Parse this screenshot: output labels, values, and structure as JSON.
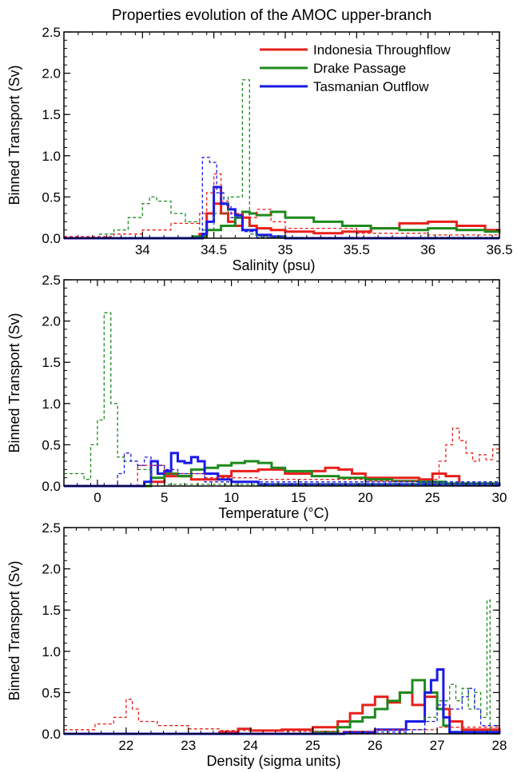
{
  "figure": {
    "title": "Properties evolution of the AMOC upper-branch"
  },
  "colors": {
    "indonesia": "#e8201c",
    "drake": "#1e8a1e",
    "tasmanian": "#1a1ae6",
    "axis": "#000000"
  },
  "chart_data": [
    {
      "type": "line",
      "style": "step histogram; solid = one state, dashed = another",
      "xlabel": "Salinity (psu)",
      "ylabel": "Binned Transport (Sv)",
      "xlim": [
        33.45,
        36.5
      ],
      "ylim": [
        0,
        2.5
      ],
      "xticks": [
        "34",
        "34.5",
        "35",
        "35.5",
        "36",
        "36.5"
      ],
      "xtick_values": [
        34,
        34.5,
        35,
        35.5,
        36,
        36.5
      ],
      "yticks": [
        "0.0",
        "0.5",
        "1.0",
        "1.5",
        "2.0",
        "2.5"
      ],
      "ytick_values": [
        0,
        0.5,
        1.0,
        1.5,
        2.0,
        2.5
      ],
      "legend": {
        "position": "top-right",
        "entries": [
          "Indonesia Throughflow",
          "Drake Passage",
          "Tasmanian Outflow"
        ]
      },
      "series": [
        {
          "name": "Indonesia Throughflow",
          "color_key": "indonesia",
          "dashed": false,
          "x": [
            33.45,
            34.4,
            34.45,
            34.5,
            34.55,
            34.6,
            34.65,
            34.7,
            34.75,
            34.8,
            34.9,
            35.0,
            35.2,
            35.4,
            35.6,
            35.8,
            36.0,
            36.2,
            36.4,
            36.5
          ],
          "y": [
            0.0,
            0.05,
            0.3,
            0.42,
            0.3,
            0.2,
            0.15,
            0.25,
            0.15,
            0.12,
            0.1,
            0.08,
            0.06,
            0.08,
            0.12,
            0.18,
            0.2,
            0.15,
            0.1,
            0.08
          ]
        },
        {
          "name": "Drake Passage",
          "color_key": "drake",
          "dashed": false,
          "x": [
            33.45,
            34.35,
            34.45,
            34.55,
            34.65,
            34.7,
            34.75,
            34.8,
            34.9,
            35.0,
            35.2,
            35.4,
            35.6,
            35.8,
            36.0,
            36.2,
            36.4,
            36.5
          ],
          "y": [
            0.0,
            0.02,
            0.1,
            0.15,
            0.25,
            0.32,
            0.3,
            0.28,
            0.32,
            0.25,
            0.2,
            0.15,
            0.12,
            0.1,
            0.12,
            0.1,
            0.08,
            0.06
          ]
        },
        {
          "name": "Tasmanian Outflow",
          "color_key": "tasmanian",
          "dashed": false,
          "x": [
            33.45,
            34.42,
            34.45,
            34.5,
            34.55,
            34.6,
            34.65,
            34.7,
            34.8,
            34.9,
            35.0,
            36.5
          ],
          "y": [
            0.0,
            0.05,
            0.2,
            0.62,
            0.42,
            0.35,
            0.28,
            0.1,
            0.04,
            0.02,
            0.0,
            0.0
          ]
        },
        {
          "name": "Indonesia Throughflow",
          "color_key": "indonesia",
          "dashed": true,
          "x": [
            33.45,
            33.8,
            34.0,
            34.2,
            34.4,
            34.45,
            34.5,
            34.55,
            34.6,
            34.7,
            34.8,
            34.9,
            35.0,
            35.5,
            36.0,
            36.5
          ],
          "y": [
            0.02,
            0.05,
            0.1,
            0.18,
            0.3,
            0.55,
            0.78,
            0.45,
            0.3,
            0.25,
            0.35,
            0.2,
            0.12,
            0.06,
            0.04,
            0.03
          ]
        },
        {
          "name": "Drake Passage",
          "color_key": "drake",
          "dashed": true,
          "x": [
            33.45,
            33.7,
            33.8,
            33.9,
            34.0,
            34.05,
            34.1,
            34.2,
            34.3,
            34.4,
            34.5,
            34.6,
            34.7,
            34.75,
            34.8,
            35.0,
            36.5
          ],
          "y": [
            0.0,
            0.05,
            0.1,
            0.25,
            0.42,
            0.5,
            0.45,
            0.3,
            0.2,
            0.1,
            0.3,
            0.5,
            1.92,
            0.05,
            0.02,
            0.0,
            0.0
          ]
        },
        {
          "name": "Tasmanian Outflow",
          "color_key": "tasmanian",
          "dashed": true,
          "x": [
            33.45,
            34.4,
            34.42,
            34.47,
            34.52,
            34.57,
            34.62,
            34.7,
            34.8,
            36.5
          ],
          "y": [
            0.0,
            0.02,
            0.98,
            0.92,
            0.55,
            0.4,
            0.25,
            0.08,
            0.01,
            0.0
          ]
        }
      ]
    },
    {
      "type": "line",
      "style": "step histogram",
      "xlabel": "Temperature (°C)",
      "ylabel": "Binned Transport (Sv)",
      "xlim": [
        -2.5,
        30
      ],
      "ylim": [
        0,
        2.5
      ],
      "xticks": [
        "0",
        "5",
        "10",
        "15",
        "20",
        "25",
        "30"
      ],
      "xtick_values": [
        0,
        5,
        10,
        15,
        20,
        25,
        30
      ],
      "yticks": [
        "0.0",
        "0.5",
        "1.0",
        "1.5",
        "2.0",
        "2.5"
      ],
      "ytick_values": [
        0,
        0.5,
        1.0,
        1.5,
        2.0,
        2.5
      ],
      "series": [
        {
          "name": "Indonesia Throughflow",
          "color_key": "indonesia",
          "dashed": false,
          "x": [
            -2.5,
            4.0,
            5.0,
            7.0,
            9.0,
            10.0,
            12.0,
            14.0,
            16.0,
            17.0,
            18.0,
            19.0,
            20.0,
            22.0,
            24.0,
            25.0,
            26.0,
            27.0,
            30.0
          ],
          "y": [
            0.0,
            0.05,
            0.12,
            0.08,
            0.12,
            0.18,
            0.2,
            0.15,
            0.18,
            0.22,
            0.2,
            0.15,
            0.1,
            0.1,
            0.08,
            0.15,
            0.12,
            0.02,
            0.0
          ]
        },
        {
          "name": "Drake Passage",
          "color_key": "drake",
          "dashed": false,
          "x": [
            -2.5,
            4.0,
            5.0,
            6.0,
            7.0,
            8.0,
            9.0,
            10.0,
            11.0,
            12.0,
            13.0,
            14.0,
            16.0,
            18.0,
            20.0,
            22.0,
            24.0,
            26.0,
            30.0
          ],
          "y": [
            0.0,
            0.1,
            0.15,
            0.12,
            0.2,
            0.22,
            0.25,
            0.28,
            0.3,
            0.28,
            0.22,
            0.18,
            0.12,
            0.1,
            0.08,
            0.06,
            0.05,
            0.03,
            0.0
          ]
        },
        {
          "name": "Tasmanian Outflow",
          "color_key": "tasmanian",
          "dashed": false,
          "x": [
            -2.5,
            3.5,
            4.0,
            4.5,
            5.0,
            5.5,
            6.0,
            6.5,
            7.0,
            7.5,
            8.0,
            9.0,
            10.0,
            12.0,
            30.0
          ],
          "y": [
            0.0,
            0.05,
            0.3,
            0.15,
            0.18,
            0.4,
            0.3,
            0.28,
            0.35,
            0.3,
            0.15,
            0.08,
            0.05,
            0.02,
            0.0
          ]
        },
        {
          "name": "Indonesia Throughflow",
          "color_key": "indonesia",
          "dashed": true,
          "x": [
            -2.5,
            3.0,
            5.0,
            8.0,
            12.0,
            16.0,
            20.0,
            24.0,
            25.5,
            26.0,
            26.5,
            27.0,
            27.5,
            28.0,
            28.5,
            29.0,
            29.5,
            30.0
          ],
          "y": [
            0.0,
            0.25,
            0.15,
            0.1,
            0.08,
            0.08,
            0.06,
            0.08,
            0.3,
            0.5,
            0.7,
            0.55,
            0.4,
            0.3,
            0.38,
            0.32,
            0.45,
            0.4
          ]
        },
        {
          "name": "Drake Passage",
          "color_key": "drake",
          "dashed": true,
          "x": [
            -2.5,
            -1.0,
            -0.5,
            0.0,
            0.5,
            1.0,
            1.5,
            2.0,
            3.0,
            4.0,
            5.0,
            30.0
          ],
          "y": [
            0.15,
            0.08,
            0.5,
            0.8,
            2.1,
            1.0,
            0.35,
            0.3,
            0.2,
            0.1,
            0.02,
            0.0
          ]
        },
        {
          "name": "Tasmanian Outflow",
          "color_key": "tasmanian",
          "dashed": true,
          "x": [
            -2.5,
            1.5,
            2.0,
            2.5,
            3.0,
            3.5,
            4.0,
            5.0,
            6.0,
            8.0,
            30.0
          ],
          "y": [
            0.0,
            0.15,
            0.4,
            0.3,
            0.25,
            0.35,
            0.25,
            0.2,
            0.15,
            0.05,
            0.0
          ]
        }
      ]
    },
    {
      "type": "line",
      "style": "step histogram",
      "xlabel": "Density (sigma units)",
      "ylabel": "Binned Transport (Sv)",
      "xlim": [
        21.0,
        28.0
      ],
      "ylim": [
        0,
        2.5
      ],
      "xticks": [
        "22",
        "23",
        "24",
        "25",
        "26",
        "27",
        "28"
      ],
      "xtick_values": [
        22,
        23,
        24,
        25,
        26,
        27,
        28
      ],
      "yticks": [
        "0.0",
        "0.5",
        "1.0",
        "1.5",
        "2.0",
        "2.5"
      ],
      "ytick_values": [
        0,
        0.5,
        1.0,
        1.5,
        2.0,
        2.5
      ],
      "series": [
        {
          "name": "Indonesia Throughflow",
          "color_key": "indonesia",
          "dashed": false,
          "x": [
            21.0,
            23.5,
            23.8,
            24.0,
            24.5,
            25.0,
            25.4,
            25.6,
            25.8,
            26.0,
            26.2,
            26.4,
            26.6,
            26.8,
            27.0,
            27.2,
            27.4,
            28.0
          ],
          "y": [
            0.0,
            0.02,
            0.06,
            0.04,
            0.05,
            0.08,
            0.15,
            0.25,
            0.35,
            0.45,
            0.38,
            0.5,
            0.35,
            0.45,
            0.3,
            0.15,
            0.05,
            0.0
          ]
        },
        {
          "name": "Drake Passage",
          "color_key": "drake",
          "dashed": false,
          "x": [
            21.0,
            25.0,
            25.4,
            25.6,
            25.8,
            26.0,
            26.2,
            26.4,
            26.6,
            26.8,
            27.0,
            27.1,
            27.2,
            28.0
          ],
          "y": [
            0.0,
            0.02,
            0.08,
            0.15,
            0.2,
            0.3,
            0.4,
            0.5,
            0.65,
            0.5,
            0.3,
            0.1,
            0.02,
            0.0
          ]
        },
        {
          "name": "Tasmanian Outflow",
          "color_key": "tasmanian",
          "dashed": false,
          "x": [
            21.0,
            25.5,
            26.0,
            26.5,
            26.8,
            26.9,
            27.0,
            27.1,
            27.2,
            28.0
          ],
          "y": [
            0.0,
            0.02,
            0.05,
            0.15,
            0.5,
            0.65,
            0.78,
            0.2,
            0.02,
            0.0
          ]
        },
        {
          "name": "Indonesia Throughflow",
          "color_key": "indonesia",
          "dashed": true,
          "x": [
            21.0,
            21.5,
            21.8,
            22.0,
            22.1,
            22.2,
            22.5,
            23.0,
            23.5,
            24.0,
            24.5,
            25.0,
            26.0,
            27.0,
            28.0
          ],
          "y": [
            0.05,
            0.12,
            0.2,
            0.42,
            0.3,
            0.15,
            0.1,
            0.06,
            0.04,
            0.04,
            0.03,
            0.03,
            0.05,
            0.08,
            0.0
          ]
        },
        {
          "name": "Drake Passage",
          "color_key": "drake",
          "dashed": true,
          "x": [
            21.0,
            26.5,
            26.8,
            27.0,
            27.2,
            27.3,
            27.4,
            27.5,
            27.6,
            27.7,
            27.8,
            27.85,
            28.0
          ],
          "y": [
            0.0,
            0.05,
            0.2,
            0.4,
            0.6,
            0.4,
            0.55,
            0.3,
            0.5,
            0.2,
            1.62,
            0.0,
            0.0
          ]
        },
        {
          "name": "Tasmanian Outflow",
          "color_key": "tasmanian",
          "dashed": true,
          "x": [
            21.0,
            26.0,
            26.5,
            26.8,
            27.0,
            27.2,
            27.4,
            27.5,
            27.6,
            27.7,
            28.0
          ],
          "y": [
            0.0,
            0.02,
            0.05,
            0.15,
            0.35,
            0.3,
            0.45,
            0.55,
            0.3,
            0.1,
            0.0
          ]
        }
      ]
    }
  ]
}
